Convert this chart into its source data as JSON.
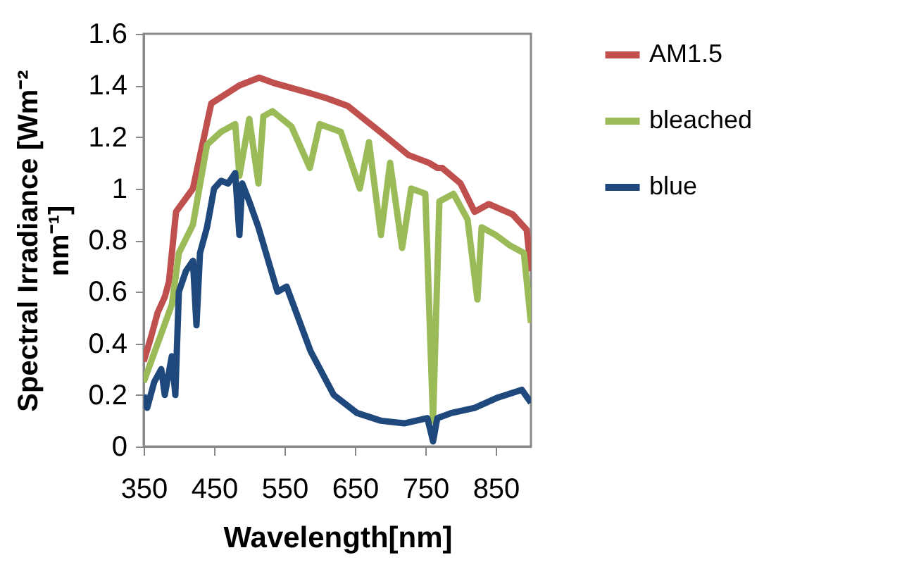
{
  "chart_data": {
    "type": "line",
    "xlabel": "Wavelength[nm]",
    "ylabel": "Spectral Irradiance [Wm⁻² nm⁻¹]",
    "xlim": [
      350,
      900
    ],
    "xticks": [
      350,
      450,
      550,
      650,
      750,
      850
    ],
    "ylim": [
      0,
      1.6
    ],
    "yticks": [
      0,
      0.2,
      0.4,
      0.6,
      0.8,
      1,
      1.2,
      1.4,
      1.6
    ],
    "grid": false,
    "legend": "right",
    "marker": "none",
    "line_style": "solid",
    "series": [
      {
        "name": "AM1.5",
        "color": "#c0504d",
        "x": [
          350,
          360,
          370,
          380,
          386,
          396,
          420,
          446,
          486,
          514,
          534,
          560,
          586,
          610,
          640,
          686,
          726,
          755,
          767,
          774,
          800,
          820,
          840,
          874,
          894,
          900
        ],
        "values": [
          0.33,
          0.42,
          0.52,
          0.58,
          0.64,
          0.91,
          1.0,
          1.33,
          1.4,
          1.43,
          1.41,
          1.39,
          1.37,
          1.35,
          1.32,
          1.22,
          1.13,
          1.1,
          1.08,
          1.08,
          1.02,
          0.91,
          0.94,
          0.9,
          0.84,
          0.68
        ]
      },
      {
        "name": "bleached",
        "color": "#9bbb59",
        "x": [
          350,
          370,
          390,
          400,
          420,
          440,
          460,
          480,
          486,
          500,
          513,
          520,
          533,
          560,
          586,
          600,
          630,
          657,
          670,
          687,
          700,
          717,
          730,
          750,
          761,
          770,
          790,
          810,
          824,
          830,
          850,
          870,
          890,
          900
        ],
        "values": [
          0.25,
          0.4,
          0.55,
          0.75,
          0.86,
          1.17,
          1.22,
          1.25,
          1.05,
          1.27,
          1.02,
          1.28,
          1.3,
          1.24,
          1.08,
          1.25,
          1.22,
          1.0,
          1.18,
          0.82,
          1.1,
          0.77,
          1.0,
          0.98,
          0.1,
          0.95,
          0.98,
          0.88,
          0.57,
          0.85,
          0.82,
          0.78,
          0.75,
          0.48
        ]
      },
      {
        "name": "blue",
        "color": "#1f497d",
        "x": [
          350,
          355,
          365,
          375,
          380,
          390,
          395,
          400,
          410,
          420,
          425,
          430,
          440,
          450,
          460,
          470,
          480,
          486,
          490,
          500,
          513,
          540,
          553,
          587,
          620,
          653,
          687,
          720,
          753,
          761,
          767,
          787,
          820,
          853,
          887,
          900
        ],
        "values": [
          0.2,
          0.15,
          0.25,
          0.3,
          0.2,
          0.35,
          0.2,
          0.6,
          0.68,
          0.72,
          0.47,
          0.75,
          0.85,
          1.0,
          1.03,
          1.02,
          1.06,
          0.82,
          1.02,
          0.95,
          0.85,
          0.6,
          0.62,
          0.37,
          0.2,
          0.13,
          0.1,
          0.09,
          0.11,
          0.02,
          0.11,
          0.13,
          0.15,
          0.19,
          0.22,
          0.17
        ]
      }
    ]
  }
}
